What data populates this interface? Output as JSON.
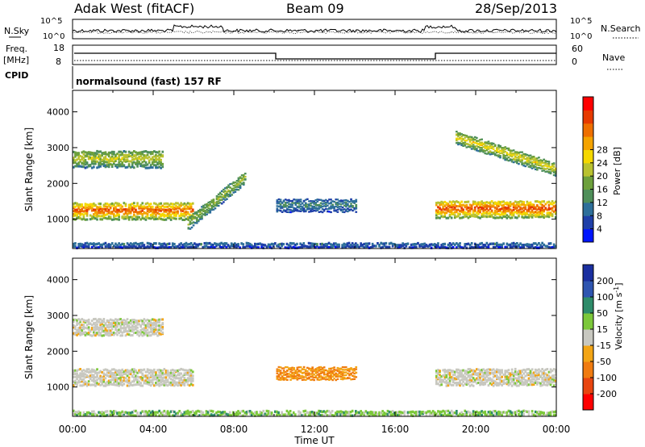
{
  "header": {
    "station": "Adak West (fitACF)",
    "beam": "Beam 09",
    "date": "28/Sep/2013"
  },
  "noise_panel": {
    "left_label": "N.Sky",
    "right_label": "N.Search",
    "left_ticks": [
      "10^5",
      "10^0"
    ],
    "right_ticks": [
      "10^5",
      "10^0"
    ]
  },
  "freq_panel": {
    "left_label_line1": "Freq.",
    "left_label_line2": "[MHz]",
    "left_ticks": [
      "18",
      "8"
    ],
    "right_label": "Nave",
    "right_ticks": [
      "60",
      "0"
    ],
    "cpid_label": "CPID",
    "cpid_text": "normalsound (fast) 157 RF"
  },
  "chart_data": [
    {
      "type": "heatmap",
      "name": "power",
      "ylabel": "Slant Range [km]",
      "xlabel": "Time UT",
      "x_ticks": [
        "00:00",
        "04:00",
        "08:00",
        "12:00",
        "16:00",
        "20:00",
        "00:00"
      ],
      "y_ticks": [
        1000,
        2000,
        3000,
        4000
      ],
      "xlim_hours": [
        0,
        24
      ],
      "ylim_km": [
        180,
        4600
      ],
      "colorbar": {
        "label": "Power [dB]",
        "ticks": [
          "4",
          "8",
          "12",
          "16",
          "20",
          "24",
          "28"
        ],
        "colors": [
          "#0015ff",
          "#1f3fa8",
          "#2e6f9a",
          "#4f8f5a",
          "#6da03c",
          "#b9c230",
          "#f5d800",
          "#f4a300",
          "#ee6f00",
          "#e63a00",
          "#ff0000"
        ]
      },
      "features": [
        {
          "region": "F-layer band",
          "t_start": 0.0,
          "t_end": 6.0,
          "r_km": 1250,
          "power_db": 26
        },
        {
          "region": "upper band",
          "t_start": 0.0,
          "t_end": 4.5,
          "r_km": 2700,
          "power_db": 16
        },
        {
          "region": "rising arc",
          "t_start": 5.7,
          "t_end": 8.6,
          "r_km": 1500,
          "power_db": 14
        },
        {
          "region": "midday patches",
          "t_start": 10.1,
          "t_end": 14.1,
          "r_km": 1400,
          "power_db": 8
        },
        {
          "region": "evening band",
          "t_start": 18.0,
          "t_end": 24.0,
          "r_km": 1300,
          "power_db": 27
        },
        {
          "region": "evening upper",
          "t_start": 19.0,
          "t_end": 24.0,
          "r_km": 2550,
          "power_db": 18
        },
        {
          "region": "ground scatter floor",
          "t_start": 0.0,
          "t_end": 24.0,
          "r_km": 300,
          "power_db": 6
        }
      ]
    },
    {
      "type": "heatmap",
      "name": "velocity",
      "ylabel": "Slant Range [km]",
      "xlabel": "Time UT",
      "x_ticks": [
        "00:00",
        "04:00",
        "08:00",
        "12:00",
        "16:00",
        "20:00",
        "00:00"
      ],
      "y_ticks": [
        1000,
        2000,
        3000,
        4000
      ],
      "xlim_hours": [
        0,
        24
      ],
      "ylim_km": [
        180,
        4600
      ],
      "colorbar": {
        "label": "Velocity [m s^-1]",
        "ticks": [
          "200",
          "100",
          "50",
          "15",
          "-15",
          "-50",
          "-100",
          "-200"
        ],
        "colors": [
          "#1a2fa0",
          "#2e55b0",
          "#2e8c6a",
          "#7cc83a",
          "#c8c8c0",
          "#f3a515",
          "#f07b10",
          "#e84510",
          "#ff0000"
        ]
      },
      "features": [
        {
          "region": "F-layer band",
          "t_start": 0.0,
          "t_end": 6.0,
          "r_km": 1300,
          "velocity": 0
        },
        {
          "region": "upper band",
          "t_start": 0.0,
          "t_end": 4.5,
          "r_km": 2700,
          "velocity": 0
        },
        {
          "region": "midday patches",
          "t_start": 10.1,
          "t_end": 14.1,
          "r_km": 1400,
          "velocity": -40
        },
        {
          "region": "evening band",
          "t_start": 18.0,
          "t_end": 24.0,
          "r_km": 1300,
          "velocity": 0
        },
        {
          "region": "ground scatter floor",
          "t_start": 0.0,
          "t_end": 24.0,
          "r_km": 300,
          "velocity": 20
        }
      ]
    }
  ],
  "time_axis_label": "Time UT"
}
